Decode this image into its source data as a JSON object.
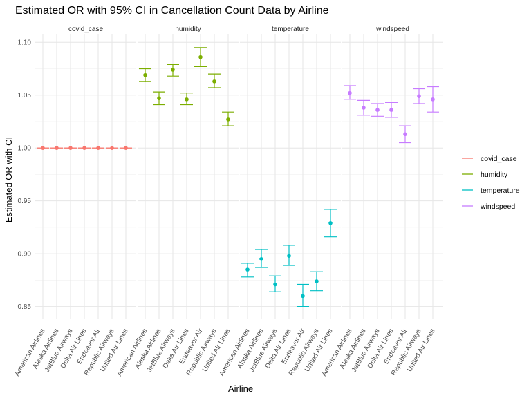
{
  "chart_data": {
    "type": "errorbar",
    "title": "Estimated OR with 95% CI in Cancellation Count Data by Airline",
    "xlabel": "Airline",
    "ylabel": "Estimated OR with CI",
    "ylim": [
      0.838,
      1.108
    ],
    "yticks": [
      "0.85",
      "0.90",
      "0.95",
      "1.00",
      "1.05",
      "1.10"
    ],
    "grid": true,
    "legend_position": "right",
    "categories": [
      "American Airlines",
      "Alaska Airlines",
      "JetBlue Airways",
      "Delta Air Lines",
      "Endeavor Air",
      "Republic Airways",
      "United Air Lines"
    ],
    "panels": [
      {
        "name": "covid_case",
        "color": "#F8766D",
        "estimate": [
          1.0,
          1.0,
          1.0,
          1.0,
          1.0,
          1.0,
          1.0
        ],
        "lower": [
          1.0,
          1.0,
          1.0,
          1.0,
          1.0,
          1.0,
          1.0
        ],
        "upper": [
          1.0,
          1.0,
          1.0,
          1.0,
          1.0,
          1.0,
          1.0
        ]
      },
      {
        "name": "humidity",
        "color": "#7CAE00",
        "estimate": [
          1.069,
          1.047,
          1.074,
          1.046,
          1.086,
          1.063,
          1.027
        ],
        "lower": [
          1.063,
          1.041,
          1.068,
          1.041,
          1.077,
          1.057,
          1.021
        ],
        "upper": [
          1.075,
          1.053,
          1.079,
          1.052,
          1.095,
          1.07,
          1.034
        ]
      },
      {
        "name": "temperature",
        "color": "#00BFC4",
        "estimate": [
          0.885,
          0.895,
          0.871,
          0.898,
          0.86,
          0.874,
          0.929
        ],
        "lower": [
          0.878,
          0.887,
          0.864,
          0.889,
          0.85,
          0.865,
          0.916
        ],
        "upper": [
          0.891,
          0.904,
          0.879,
          0.908,
          0.871,
          0.883,
          0.942
        ]
      },
      {
        "name": "windspeed",
        "color": "#C77CFF",
        "estimate": [
          1.052,
          1.038,
          1.036,
          1.036,
          1.013,
          1.049,
          1.046
        ],
        "lower": [
          1.046,
          1.031,
          1.03,
          1.029,
          1.005,
          1.042,
          1.034
        ],
        "upper": [
          1.059,
          1.045,
          1.042,
          1.043,
          1.021,
          1.056,
          1.058
        ]
      }
    ]
  }
}
